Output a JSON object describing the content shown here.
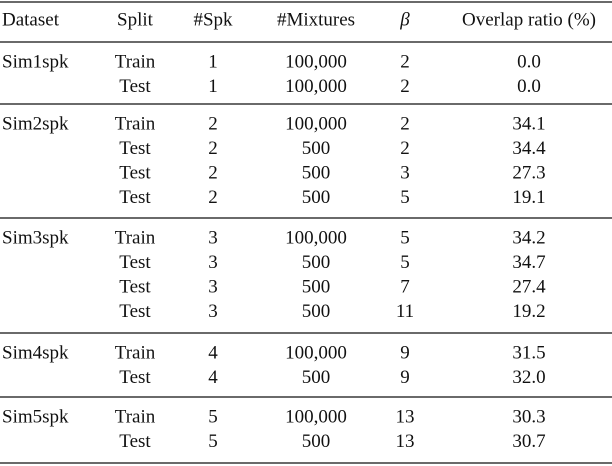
{
  "table": {
    "header": [
      "Dataset",
      "Split",
      "#Spk",
      "#Mixtures",
      "β",
      "Overlap ratio (%)"
    ],
    "groups": [
      {
        "dataset": "Sim1spk",
        "rows": [
          [
            "Train",
            "1",
            "100,000",
            "2",
            "0.0"
          ],
          [
            "Test",
            "1",
            "100,000",
            "2",
            "0.0"
          ]
        ]
      },
      {
        "dataset": "Sim2spk",
        "rows": [
          [
            "Train",
            "2",
            "100,000",
            "2",
            "34.1"
          ],
          [
            "Test",
            "2",
            "500",
            "2",
            "34.4"
          ],
          [
            "Test",
            "2",
            "500",
            "3",
            "27.3"
          ],
          [
            "Test",
            "2",
            "500",
            "5",
            "19.1"
          ]
        ]
      },
      {
        "dataset": "Sim3spk",
        "rows": [
          [
            "Train",
            "3",
            "100,000",
            "5",
            "34.2"
          ],
          [
            "Test",
            "3",
            "500",
            "5",
            "34.7"
          ],
          [
            "Test",
            "3",
            "500",
            "7",
            "27.4"
          ],
          [
            "Test",
            "3",
            "500",
            "11",
            "19.2"
          ]
        ]
      },
      {
        "dataset": "Sim4spk",
        "rows": [
          [
            "Train",
            "4",
            "100,000",
            "9",
            "31.5"
          ],
          [
            "Test",
            "4",
            "500",
            "9",
            "32.0"
          ]
        ]
      },
      {
        "dataset": "Sim5spk",
        "rows": [
          [
            "Train",
            "5",
            "100,000",
            "13",
            "30.3"
          ],
          [
            "Test",
            "5",
            "500",
            "13",
            "30.7"
          ]
        ]
      }
    ]
  }
}
